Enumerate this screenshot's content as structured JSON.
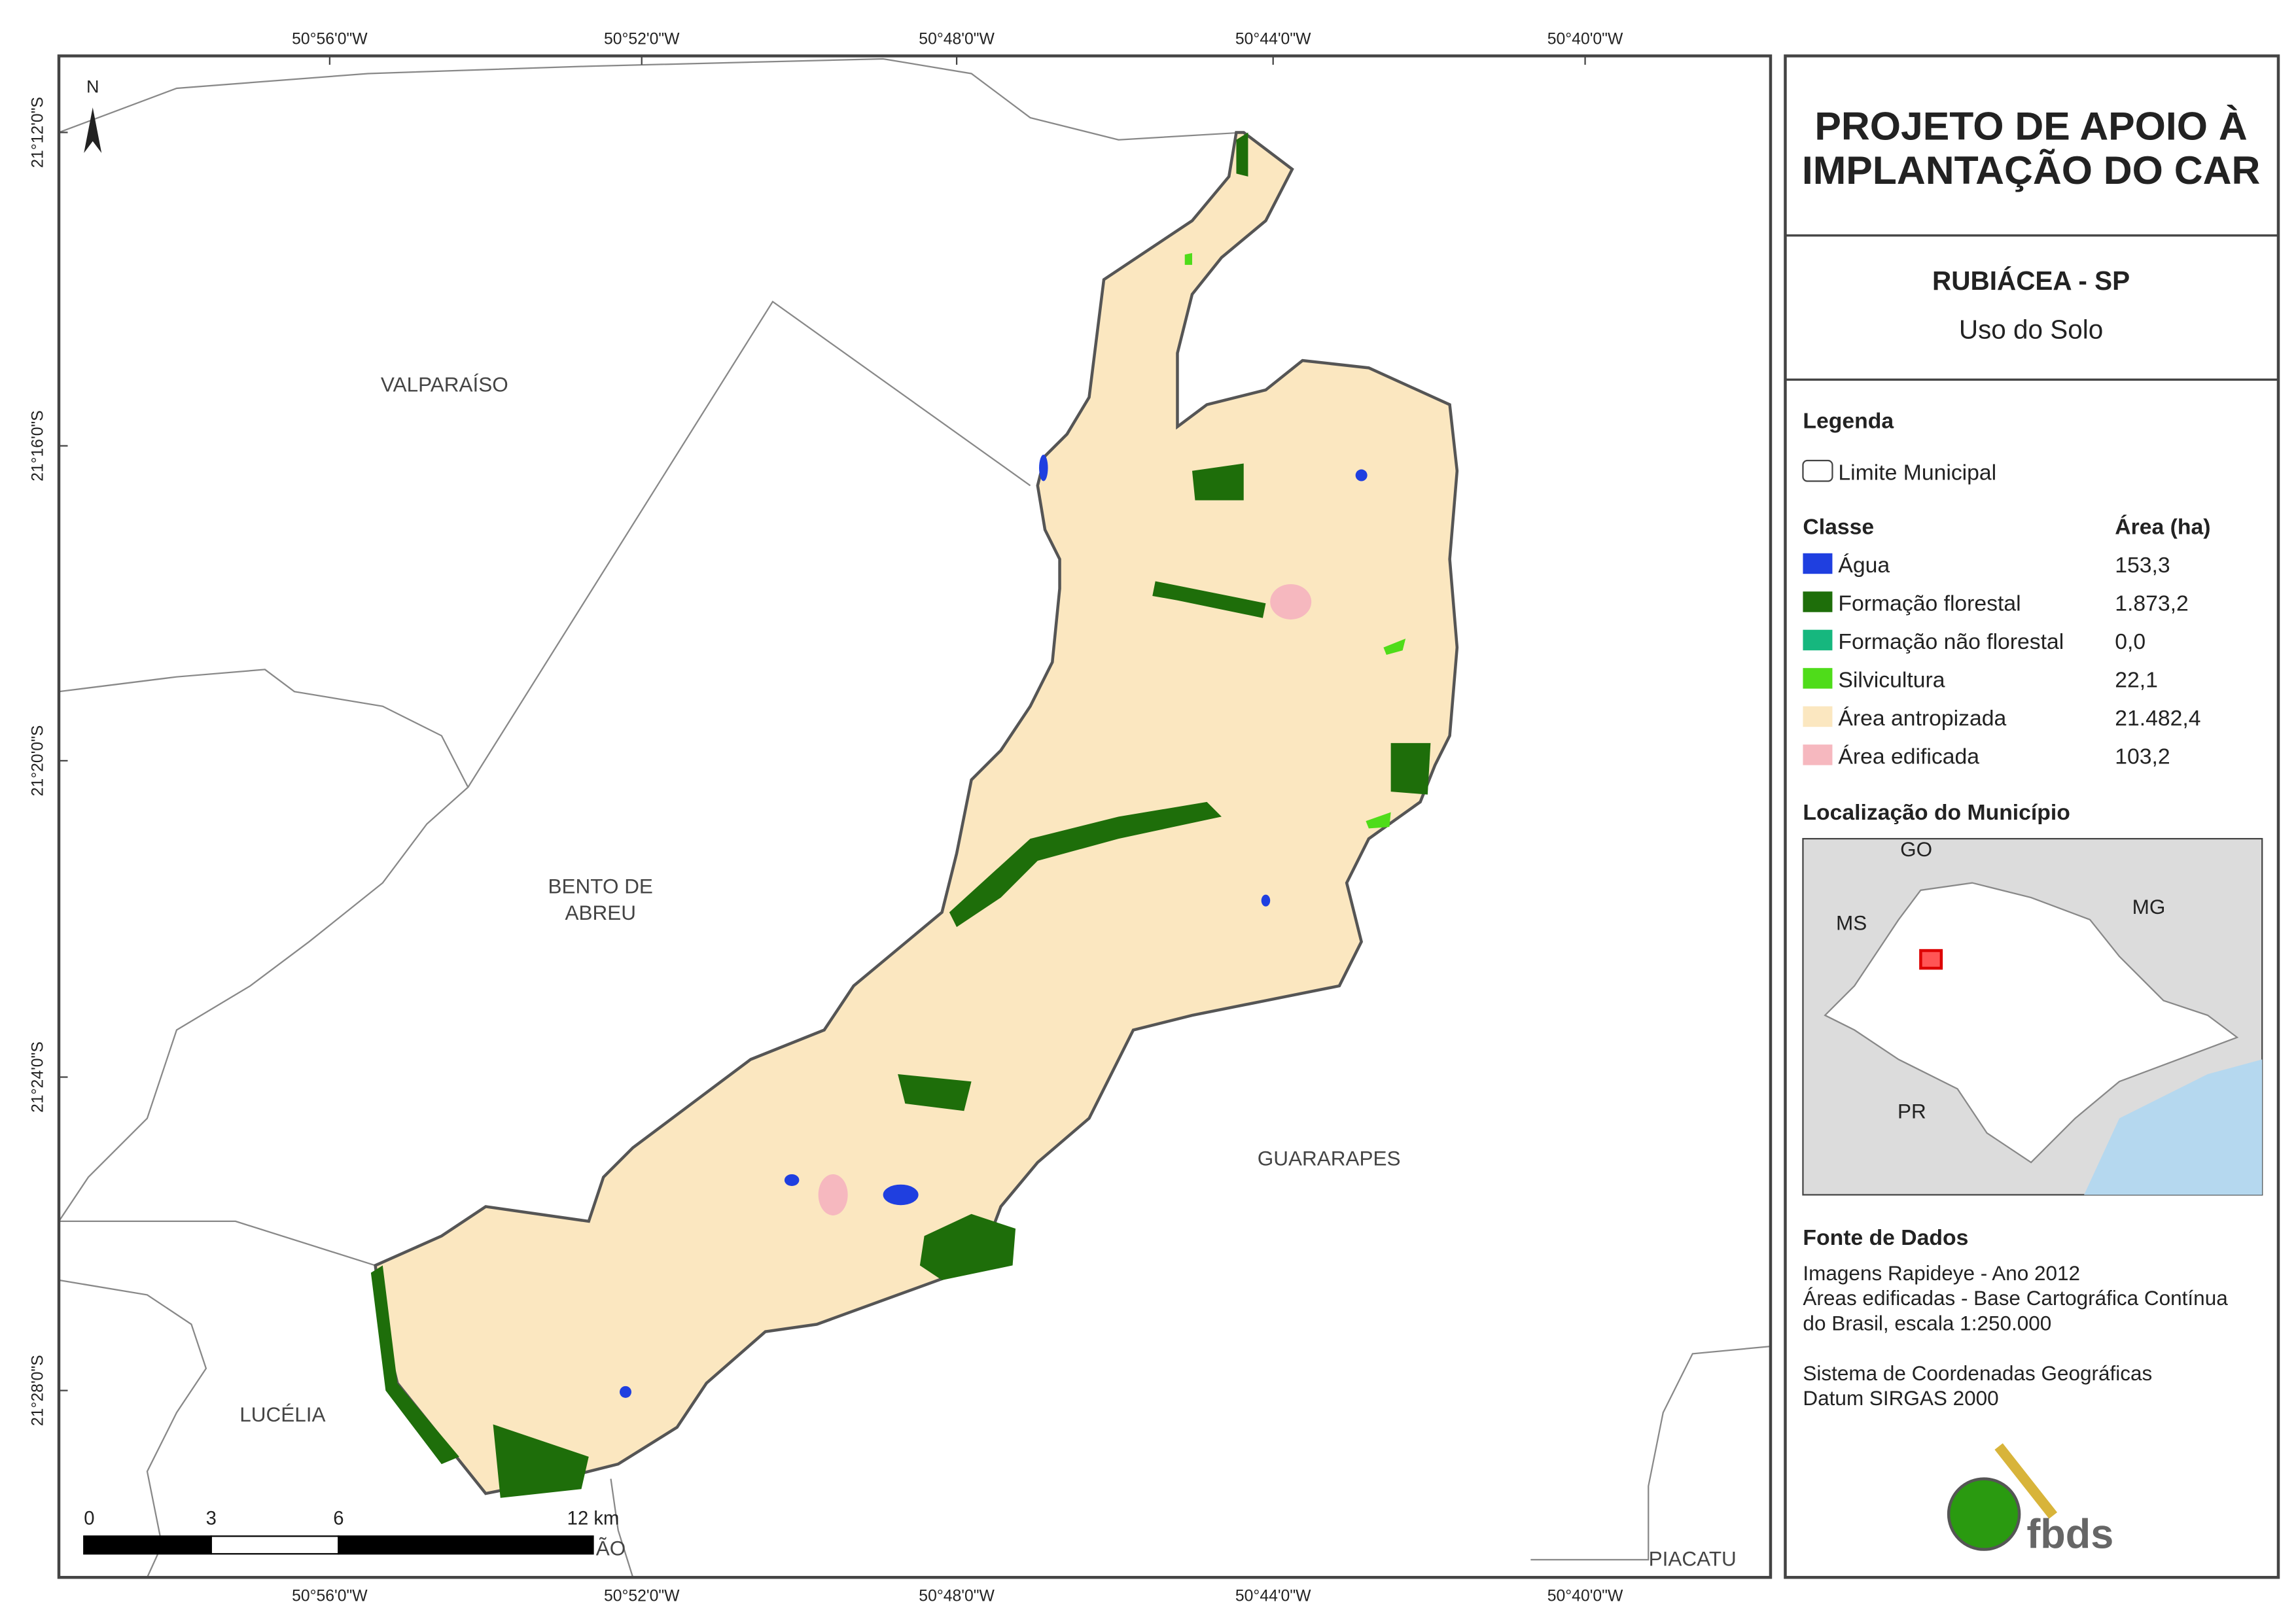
{
  "header": {
    "title_lines": [
      "PROJETO DE APOIO À",
      "IMPLANTAÇÃO DO CAR"
    ],
    "subtitle": "RUBIÁCEA - SP",
    "theme": "Uso do Solo"
  },
  "legend": {
    "title": "Legenda",
    "boundary": "Limite Municipal",
    "class_header": "Classe",
    "area_header": "Área (ha)",
    "classes": [
      {
        "name": "Água",
        "color": "#1f3fe0",
        "area": "153,3"
      },
      {
        "name": "Formação florestal",
        "color": "#1e6e0a",
        "area": "1.873,2"
      },
      {
        "name": "Formação não florestal",
        "color": "#16b77e",
        "area": "0,0"
      },
      {
        "name": "Silvicultura",
        "color": "#4fdc1a",
        "area": "22,1"
      },
      {
        "name": "Área antropizada",
        "color": "#fbe7c0",
        "area": "21.482,4"
      },
      {
        "name": "Área edificada",
        "color": "#f6b8bf",
        "area": "103,2"
      }
    ]
  },
  "location": {
    "title": "Localização do Município",
    "labels": [
      "GO",
      "MS",
      "MG",
      "PR"
    ]
  },
  "sources": {
    "title": "Fonte de Dados",
    "lines": [
      "Imagens Rapideye - Ano 2012",
      "Áreas edificadas - Base Cartográfica Contínua",
      "do Brasil, escala 1:250.000",
      "",
      "Sistema de Coordenadas Geográficas",
      "Datum SIRGAS 2000"
    ]
  },
  "map": {
    "north": "N",
    "longitudes": [
      "50°56'0\"W",
      "50°52'0\"W",
      "50°48'0\"W",
      "50°44'0\"W",
      "50°40'0\"W"
    ],
    "latitudes": [
      "21°12'0\"S",
      "21°16'0\"S",
      "21°20'0\"S",
      "21°24'0\"S",
      "21°28'0\"S"
    ],
    "places": [
      [
        "VALPARAÍSO"
      ],
      [
        "BENTO DE",
        "ABREU"
      ],
      [
        "GUARARAPES"
      ],
      [
        "LUCÉLIA"
      ],
      [
        "PIACATU"
      ],
      [
        "ÃO"
      ]
    ],
    "scale": [
      0,
      3,
      6,
      {
        "value": 12,
        "label": "12 km"
      }
    ]
  },
  "logo": "fbds"
}
